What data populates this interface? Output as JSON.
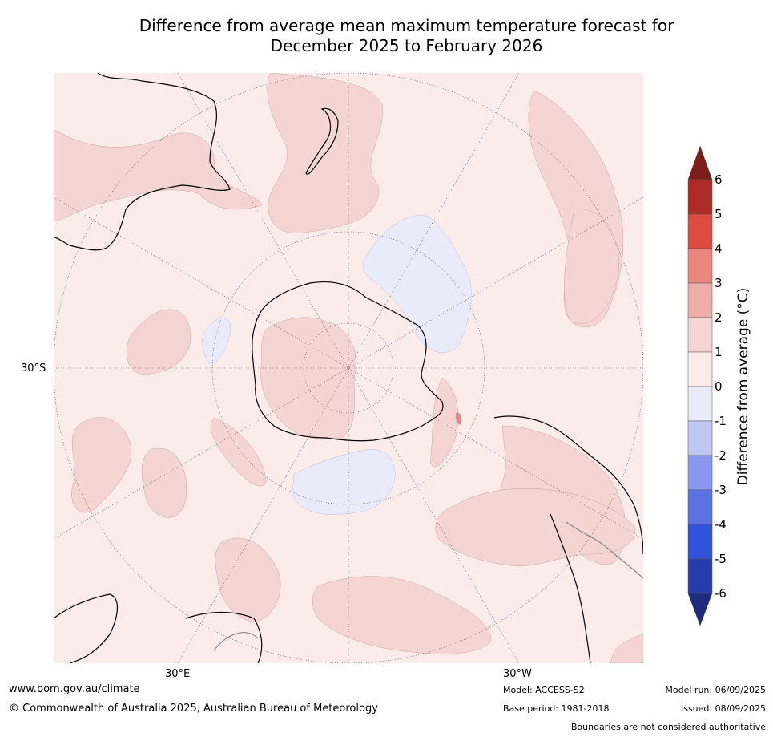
{
  "title_line1": "Difference from average mean maximum temperature forecast for",
  "title_line2": "December 2025 to February 2026",
  "map": {
    "projection": "south polar stereographic",
    "lon_labels": [
      "30°E",
      "30°W"
    ],
    "lat_label": "30°S"
  },
  "colorbar": {
    "label": "Difference from average (°C)",
    "ticks": [
      "6",
      "5",
      "4",
      "3",
      "2",
      "1",
      "0",
      "-1",
      "-2",
      "-3",
      "-4",
      "-5",
      "-6"
    ],
    "colors": {
      "gt6": "#7b1d19",
      "5_6": "#ad2b25",
      "4_5": "#dd4b40",
      "3_4": "#ea867e",
      "2_3": "#ecaea8",
      "1_2": "#f4d5d3",
      "0_1": "#fbecea",
      "m1_0": "#e9ebfa",
      "m2_m1": "#c0c7f2",
      "m3_m2": "#8898ec",
      "m4_m3": "#5b73e2",
      "m5_m4": "#2e52dc",
      "m6_m5": "#263ca8",
      "lt_m6": "#1f2b7c"
    }
  },
  "footer": {
    "website": "www.bom.gov.au/climate",
    "copyright": "© Commonwealth of Australia 2025, Australian Bureau of Meteorology",
    "model": "Model: ACCESS-S2",
    "base_period": "Base period: 1981-2018",
    "model_run": "Model run: 06/09/2025",
    "issued": "Issued: 08/09/2025",
    "disclaimer": "Boundaries are not considered authoritative"
  }
}
